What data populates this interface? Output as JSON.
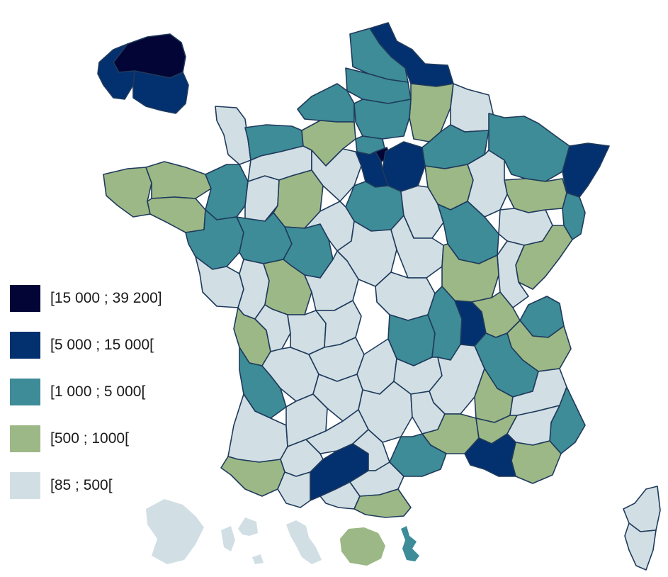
{
  "legend": {
    "items": [
      {
        "label": "[15 000 ; 39 200]",
        "class": "c1",
        "color": "#030536"
      },
      {
        "label": "[5 000 ; 15 000[",
        "class": "c2",
        "color": "#03306e"
      },
      {
        "label": "[1 000 ; 5 000[",
        "class": "c3",
        "color": "#3d8c98"
      },
      {
        "label": "[500 ; 1000[",
        "class": "c4",
        "color": "#9cb886"
      },
      {
        "label": "[85 ; 500[",
        "class": "c5",
        "color": "#d1dfe4"
      }
    ]
  },
  "colors": {
    "border": "#1f3a5c",
    "background": "#ffffff"
  }
}
